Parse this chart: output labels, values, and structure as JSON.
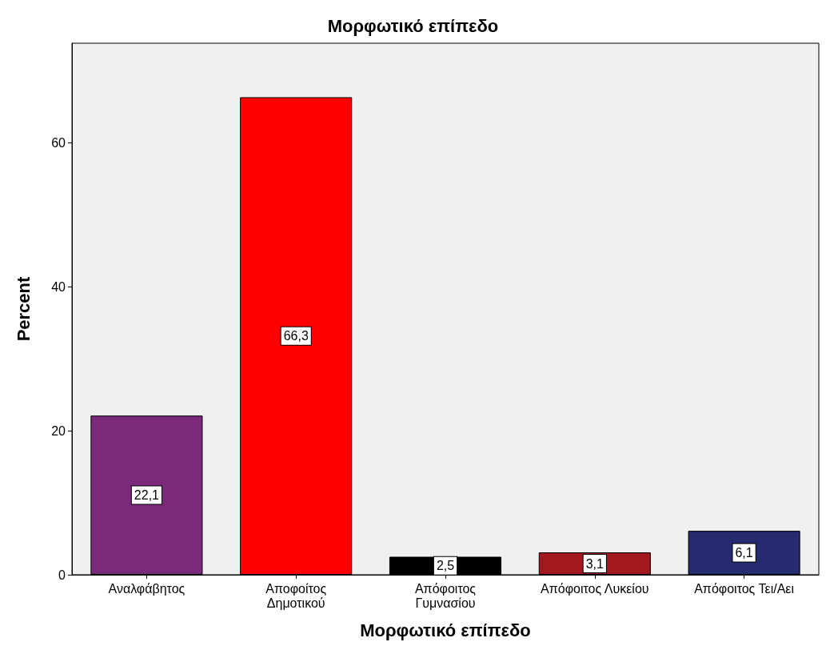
{
  "chart_data": {
    "type": "bar",
    "title": "Μορφωτικό επίπεδο",
    "xlabel": "Μορφωτικό επίπεδο",
    "ylabel": "Percent",
    "categories": [
      "Αναλφάβητος",
      "Αποφοίτος Δημοτικού",
      "Απόφοιτος Γυμνασίου",
      "Απόφοιτος Λυκείου",
      "Απόφοιτος Τει/Αει"
    ],
    "values": [
      22.1,
      66.3,
      2.5,
      3.1,
      6.1
    ],
    "colors": [
      "#7b2a7b",
      "#ff0000",
      "#000000",
      "#a3171f",
      "#262a6e"
    ],
    "value_labels": [
      "22,1",
      "66,3",
      "2,5",
      "3,1",
      "6,1"
    ],
    "ylim": [
      0,
      73.8
    ],
    "yticks": [
      0,
      20,
      40,
      60
    ]
  }
}
